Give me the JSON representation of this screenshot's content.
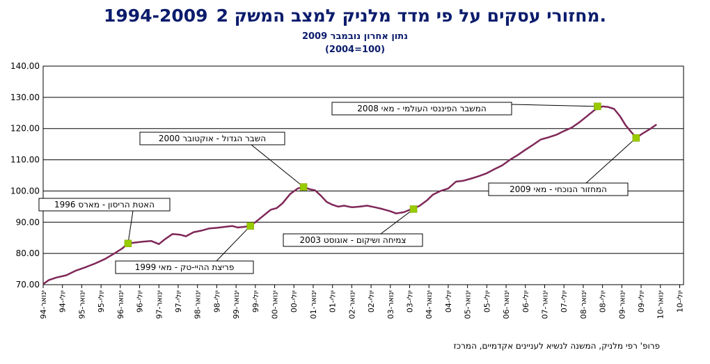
{
  "chart_data": {
    "type": "line",
    "title": "מחזורי עסקים על פי מדד מלניק למצב המשק 1994-2009",
    "title_number": "2.",
    "subtitle": "נתון אחרון נובמבר 2009",
    "base_note": "(2004=100)",
    "ylim": [
      70,
      140
    ],
    "yticks": [
      "70.00",
      "80.00",
      "90.00",
      "100.00",
      "110.00",
      "120.00",
      "130.00",
      "140.00"
    ],
    "xlim": [
      1994.0,
      2010.6
    ],
    "xticks": [
      {
        "label": "ינואר-94",
        "t": 1994.0
      },
      {
        "label": "יולי-94",
        "t": 1994.5
      },
      {
        "label": "ינואר-95",
        "t": 1995.0
      },
      {
        "label": "יולי-95",
        "t": 1995.5
      },
      {
        "label": "ינואר-96",
        "t": 1996.0
      },
      {
        "label": "יולי-96",
        "t": 1996.5
      },
      {
        "label": "ינואר-97",
        "t": 1997.0
      },
      {
        "label": "יולי-97",
        "t": 1997.5
      },
      {
        "label": "ינואר-98",
        "t": 1998.0
      },
      {
        "label": "יולי-98",
        "t": 1998.5
      },
      {
        "label": "ינואר-99",
        "t": 1999.0
      },
      {
        "label": "יולי-99",
        "t": 1999.5
      },
      {
        "label": "ינואר-00",
        "t": 2000.0
      },
      {
        "label": "יולי-00",
        "t": 2000.5
      },
      {
        "label": "ינואר-01",
        "t": 2001.0
      },
      {
        "label": "יולי-01",
        "t": 2001.5
      },
      {
        "label": "ינואר-02",
        "t": 2002.0
      },
      {
        "label": "יולי-02",
        "t": 2002.5
      },
      {
        "label": "ינואר-03",
        "t": 2003.0
      },
      {
        "label": "יולי-03",
        "t": 2003.5
      },
      {
        "label": "ינואר-04",
        "t": 2004.0
      },
      {
        "label": "יולי-04",
        "t": 2004.5
      },
      {
        "label": "ינואר-05",
        "t": 2005.0
      },
      {
        "label": "יולי-05",
        "t": 2005.5
      },
      {
        "label": "ינואר-06",
        "t": 2006.0
      },
      {
        "label": "יולי-06",
        "t": 2006.5
      },
      {
        "label": "ינואר-07",
        "t": 2007.0
      },
      {
        "label": "יולי-07",
        "t": 2007.5
      },
      {
        "label": "ינואר-08",
        "t": 2008.0
      },
      {
        "label": "יולי-08",
        "t": 2008.5
      },
      {
        "label": "ינואר-09",
        "t": 2009.0
      },
      {
        "label": "יולי-09",
        "t": 2009.5
      },
      {
        "label": "ינואר-10",
        "t": 2010.0
      },
      {
        "label": "יולי-10",
        "t": 2010.5
      }
    ],
    "series": [
      {
        "name": "מדד מלניק",
        "color": "#7f2758",
        "points": [
          [
            1994.0,
            70.2
          ],
          [
            1994.15,
            71.5
          ],
          [
            1994.35,
            72.3
          ],
          [
            1994.6,
            73.0
          ],
          [
            1994.85,
            74.5
          ],
          [
            1995.1,
            75.6
          ],
          [
            1995.35,
            76.8
          ],
          [
            1995.6,
            78.2
          ],
          [
            1995.85,
            80.0
          ],
          [
            1996.05,
            81.6
          ],
          [
            1996.2,
            83.2
          ],
          [
            1996.4,
            83.5
          ],
          [
            1996.6,
            83.8
          ],
          [
            1996.8,
            84.0
          ],
          [
            1997.0,
            83.0
          ],
          [
            1997.15,
            84.5
          ],
          [
            1997.35,
            86.2
          ],
          [
            1997.55,
            86.0
          ],
          [
            1997.7,
            85.5
          ],
          [
            1997.9,
            86.8
          ],
          [
            1998.1,
            87.3
          ],
          [
            1998.3,
            88.0
          ],
          [
            1998.5,
            88.2
          ],
          [
            1998.7,
            88.5
          ],
          [
            1998.9,
            88.8
          ],
          [
            1999.05,
            88.3
          ],
          [
            1999.2,
            88.5
          ],
          [
            1999.35,
            88.8
          ],
          [
            1999.5,
            90.0
          ],
          [
            1999.7,
            92.0
          ],
          [
            1999.9,
            94.0
          ],
          [
            2000.05,
            94.5
          ],
          [
            2000.2,
            96.0
          ],
          [
            2000.4,
            99.0
          ],
          [
            2000.6,
            100.8
          ],
          [
            2000.75,
            101.3
          ],
          [
            2000.9,
            100.6
          ],
          [
            2001.05,
            100.2
          ],
          [
            2001.2,
            98.5
          ],
          [
            2001.35,
            96.5
          ],
          [
            2001.5,
            95.6
          ],
          [
            2001.65,
            95.0
          ],
          [
            2001.8,
            95.3
          ],
          [
            2002.0,
            94.8
          ],
          [
            2002.2,
            95.0
          ],
          [
            2002.4,
            95.3
          ],
          [
            2002.6,
            94.8
          ],
          [
            2002.8,
            94.2
          ],
          [
            2003.0,
            93.5
          ],
          [
            2003.15,
            92.8
          ],
          [
            2003.35,
            93.2
          ],
          [
            2003.55,
            94.2
          ],
          [
            2003.75,
            95.2
          ],
          [
            2003.95,
            97.0
          ],
          [
            2004.1,
            98.8
          ],
          [
            2004.3,
            100.0
          ],
          [
            2004.5,
            100.8
          ],
          [
            2004.7,
            103.0
          ],
          [
            2004.9,
            103.3
          ],
          [
            2005.1,
            104.0
          ],
          [
            2005.3,
            104.8
          ],
          [
            2005.5,
            105.7
          ],
          [
            2005.7,
            107.0
          ],
          [
            2005.9,
            108.2
          ],
          [
            2006.1,
            110.0
          ],
          [
            2006.3,
            111.5
          ],
          [
            2006.5,
            113.2
          ],
          [
            2006.7,
            114.8
          ],
          [
            2006.9,
            116.5
          ],
          [
            2007.1,
            117.2
          ],
          [
            2007.3,
            118.0
          ],
          [
            2007.5,
            119.2
          ],
          [
            2007.7,
            120.3
          ],
          [
            2007.9,
            122.0
          ],
          [
            2008.1,
            124.0
          ],
          [
            2008.3,
            126.0
          ],
          [
            2008.5,
            127.1
          ],
          [
            2008.65,
            126.9
          ],
          [
            2008.8,
            126.3
          ],
          [
            2008.95,
            124.0
          ],
          [
            2009.1,
            121.0
          ],
          [
            2009.25,
            118.8
          ],
          [
            2009.37,
            117.0
          ],
          [
            2009.55,
            118.5
          ],
          [
            2009.75,
            120.0
          ],
          [
            2009.9,
            121.3
          ]
        ]
      }
    ],
    "annotations": [
      {
        "label": "האטת הריסון - מארס 1996",
        "t": 1996.2,
        "v": 83.2
      },
      {
        "label": "פריצת ההיי-טק - מאי 1999",
        "t": 1999.37,
        "v": 88.8
      },
      {
        "label": "השבר הגדול - אוקטובר 2000",
        "t": 2000.75,
        "v": 101.3
      },
      {
        "label": "צמיחה ושיקום - אוגוסט 2003",
        "t": 2003.6,
        "v": 94.2
      },
      {
        "label": "המשבר הפיננסי העולמי - מאי 2008",
        "t": 2008.37,
        "v": 127.1
      },
      {
        "label": "המחזור הנוכחי - מאי 2009",
        "t": 2009.37,
        "v": 117.0
      }
    ],
    "marker_color": "#99cc00",
    "footer": "פרופ' רפי מלניק, המשנה לנשיא לעניינים אקדמיים, המרכז"
  }
}
